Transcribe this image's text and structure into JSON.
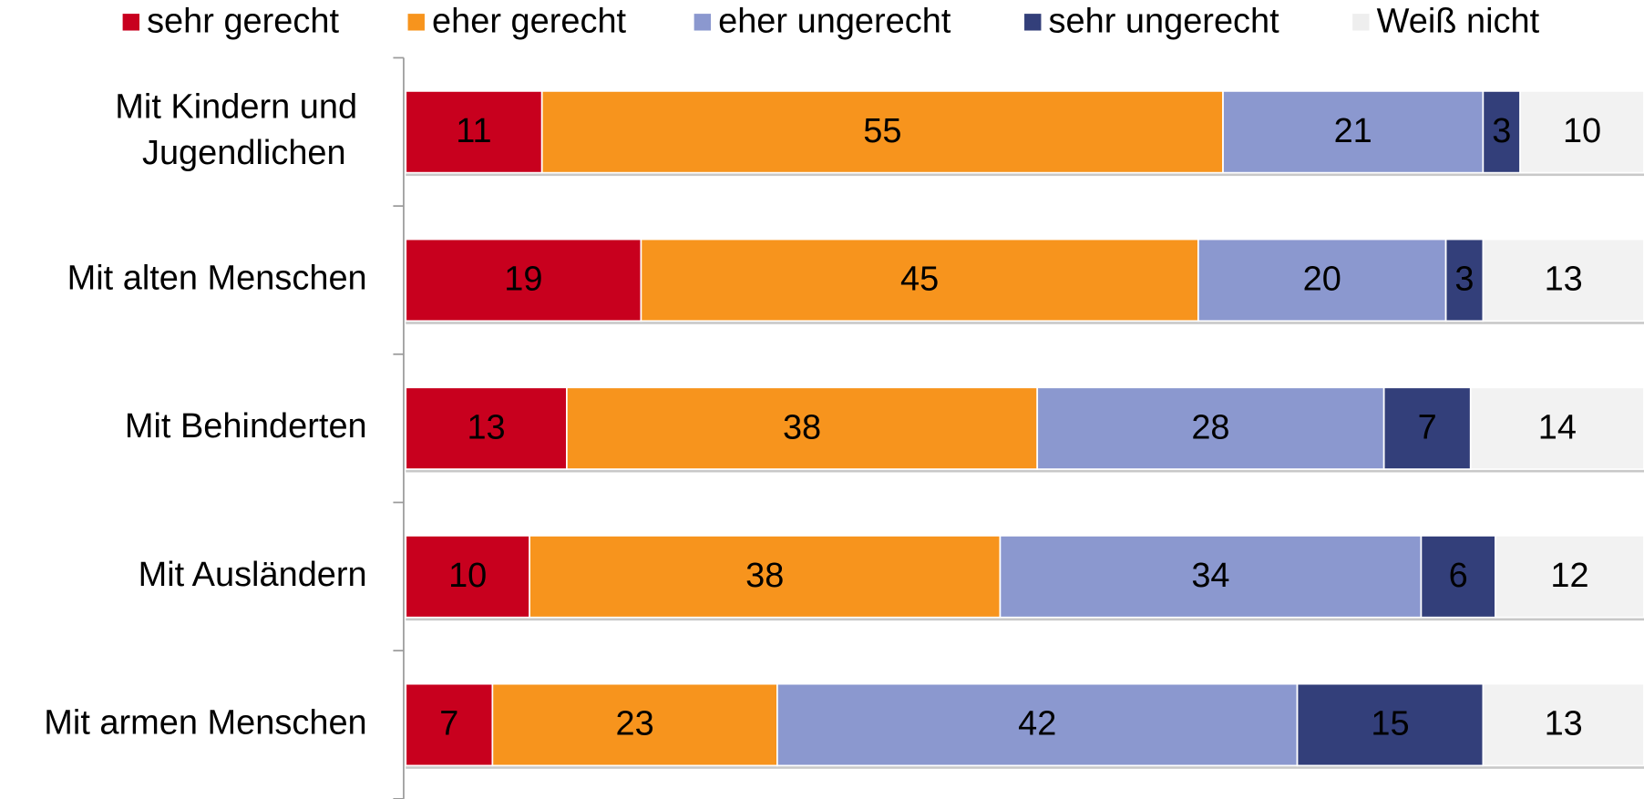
{
  "chart_data": {
    "type": "stacked-bar-horizontal",
    "categories": [
      "Mit Kindern und Jugendlichen",
      "Mit alten Menschen",
      "Mit Behinderten",
      "Mit Ausländern",
      "Mit armen Menschen"
    ],
    "series": [
      {
        "name": "sehr gerecht",
        "color": "#c8001e",
        "values": [
          11,
          19,
          13,
          10,
          7
        ]
      },
      {
        "name": "eher gerecht",
        "color": "#f7941d",
        "values": [
          55,
          45,
          38,
          38,
          23
        ]
      },
      {
        "name": "eher ungerecht",
        "color": "#8b98cf",
        "values": [
          21,
          20,
          28,
          34,
          42
        ]
      },
      {
        "name": "sehr ungerecht",
        "color": "#333f7a",
        "values": [
          3,
          3,
          7,
          6,
          15
        ]
      },
      {
        "name": "Weiß nicht",
        "color": "#f2f2f2",
        "values": [
          10,
          13,
          14,
          12,
          13
        ]
      }
    ],
    "xlim": [
      0,
      100
    ],
    "legend": "top"
  }
}
